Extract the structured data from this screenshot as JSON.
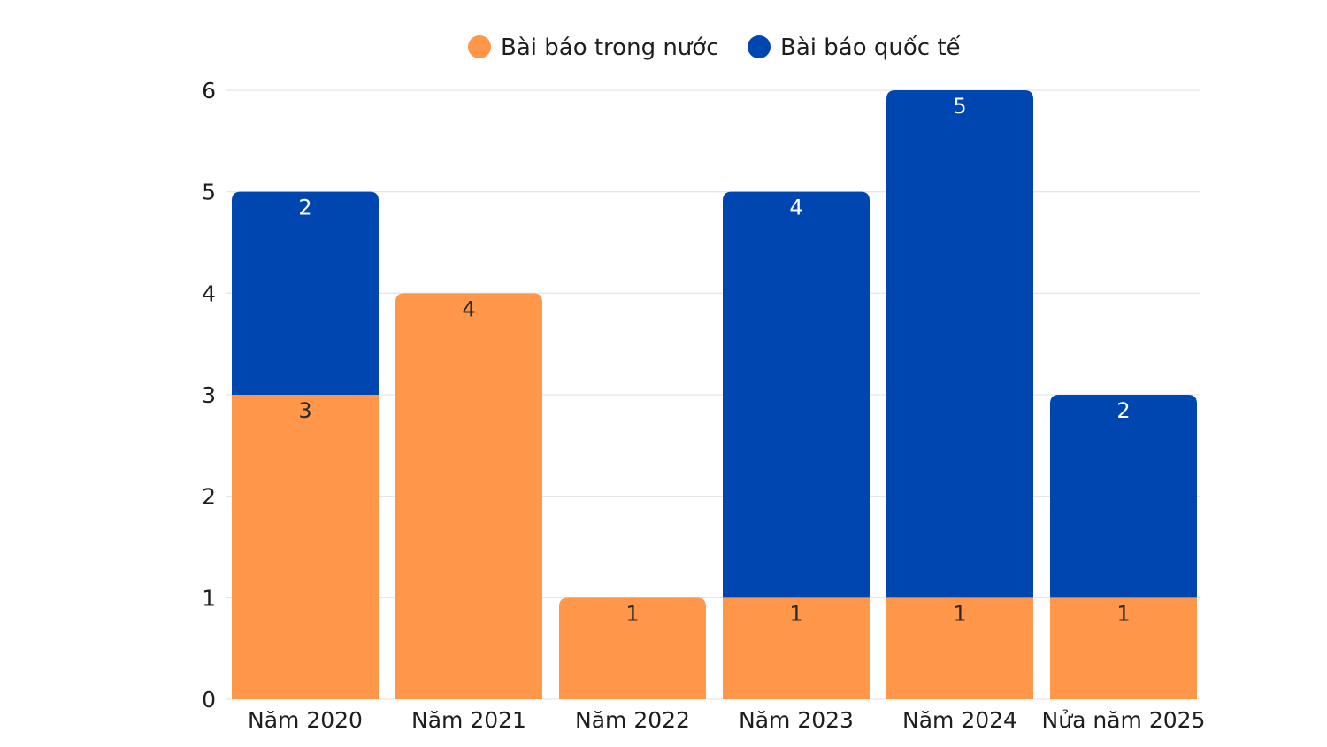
{
  "chart_data": {
    "type": "bar",
    "stacked": true,
    "categories": [
      "Năm 2020",
      "Năm 2021",
      "Năm 2022",
      "Năm 2023",
      "Năm 2024",
      "Nửa năm 2025"
    ],
    "series": [
      {
        "name": "Bài báo trong nước",
        "color": "#FF974A",
        "label_color": "#2a2a2a",
        "values": [
          3,
          4,
          1,
          1,
          1,
          1
        ]
      },
      {
        "name": "Bài báo quốc tế",
        "color": "#0046B0",
        "label_color": "#ffffff",
        "values": [
          2,
          0,
          0,
          4,
          5,
          2
        ]
      }
    ],
    "title": "",
    "xlabel": "",
    "ylabel": "",
    "ylim": [
      0,
      6
    ],
    "yticks": [
      0,
      1,
      2,
      3,
      4,
      5,
      6
    ],
    "grid": true,
    "legend_position": "top-center",
    "data_labels": true
  }
}
